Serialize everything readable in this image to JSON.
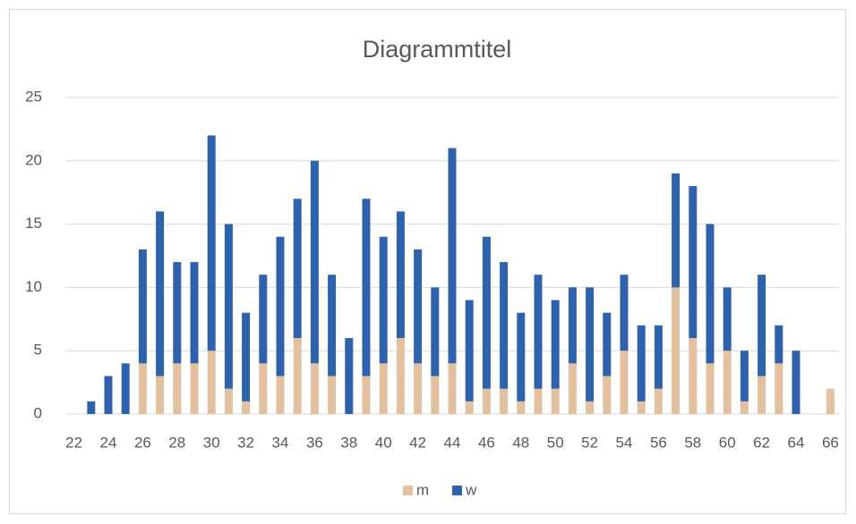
{
  "chart_data": {
    "type": "stacked-bar",
    "title": "Diagrammtitel",
    "categories": [
      22,
      null,
      24,
      null,
      26,
      null,
      28,
      null,
      30,
      null,
      32,
      null,
      34,
      null,
      36,
      null,
      38,
      null,
      40,
      null,
      42,
      null,
      44,
      null,
      46,
      null,
      48,
      null,
      50,
      null,
      52,
      null,
      54,
      null,
      56,
      null,
      58,
      null,
      60,
      null,
      62,
      null,
      64,
      null,
      66
    ],
    "series": [
      {
        "name": "m",
        "color": "#e2c0a0",
        "values": [
          0,
          0,
          0,
          0,
          4,
          3,
          4,
          4,
          5,
          2,
          1,
          4,
          3,
          6,
          4,
          3,
          0,
          3,
          4,
          6,
          4,
          3,
          4,
          1,
          2,
          2,
          1,
          2,
          2,
          4,
          1,
          3,
          5,
          1,
          2,
          10,
          6,
          4,
          5,
          1,
          3,
          4,
          0,
          0,
          2
        ]
      },
      {
        "name": "w",
        "color": "#2e62ad",
        "values": [
          0,
          1,
          3,
          4,
          9,
          13,
          8,
          8,
          17,
          13,
          7,
          7,
          11,
          11,
          16,
          8,
          6,
          14,
          10,
          10,
          9,
          7,
          17,
          8,
          12,
          10,
          7,
          9,
          7,
          6,
          9,
          5,
          6,
          6,
          5,
          9,
          12,
          11,
          5,
          4,
          8,
          3,
          5,
          0,
          0
        ]
      }
    ],
    "ylim": [
      0,
      25
    ],
    "yticks": [
      0,
      5,
      10,
      15,
      20,
      25
    ],
    "grid": true,
    "legend": "bottom"
  }
}
